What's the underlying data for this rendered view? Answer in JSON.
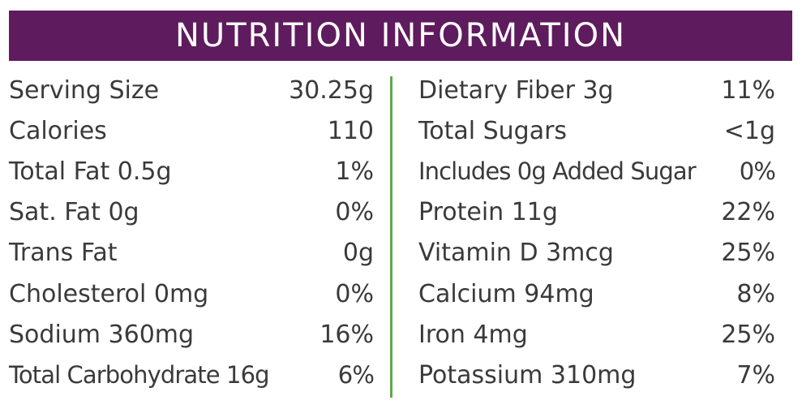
{
  "header": {
    "title": "NUTRITION INFORMATION",
    "background_color": "#5e1b5d",
    "divider_color": "#5daa4e"
  },
  "left_column": [
    {
      "label": "Serving Size",
      "value": "30.25g"
    },
    {
      "label": "Calories",
      "value": "110"
    },
    {
      "label": "Total Fat 0.5g",
      "value": "1%"
    },
    {
      "label": "Sat. Fat 0g",
      "value": "0%"
    },
    {
      "label": "Trans Fat",
      "value": "0g"
    },
    {
      "label": "Cholesterol 0mg",
      "value": "0%"
    },
    {
      "label": "Sodium 360mg",
      "value": "16%"
    },
    {
      "label": "Total Carbohydrate 16g",
      "value": "6%"
    }
  ],
  "right_column": [
    {
      "label": "Dietary Fiber 3g",
      "value": "11%"
    },
    {
      "label": "Total Sugars",
      "value": "<1g"
    },
    {
      "label": "Includes 0g Added Sugar",
      "value": "0%"
    },
    {
      "label": "Protein 11g",
      "value": "22%"
    },
    {
      "label": "Vitamin D 3mcg",
      "value": "25%"
    },
    {
      "label": "Calcium 94mg",
      "value": "8%"
    },
    {
      "label": "Iron 4mg",
      "value": "25%"
    },
    {
      "label": "Potassium 310mg",
      "value": "7%"
    }
  ]
}
